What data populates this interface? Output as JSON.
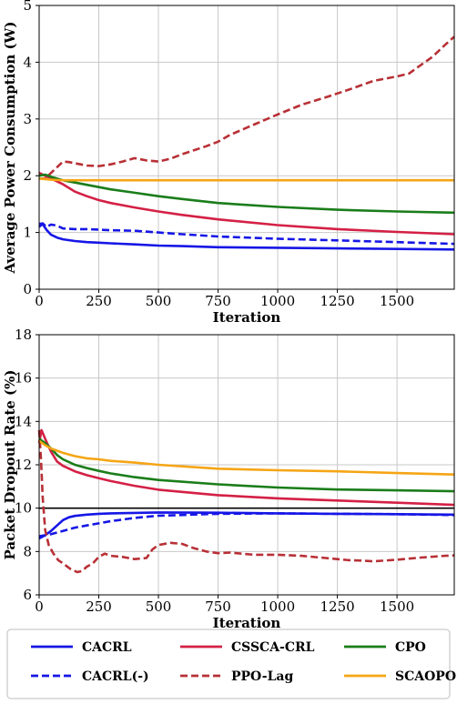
{
  "chart_data": [
    {
      "type": "line",
      "xlabel": "Iteration",
      "ylabel": "Average Power Consumption (W)",
      "xlim": [
        0,
        1740
      ],
      "ylim": [
        0,
        5
      ],
      "xticks": [
        0,
        250,
        500,
        750,
        1000,
        1250,
        1500
      ],
      "yticks": [
        0,
        1,
        2,
        3,
        4,
        5
      ],
      "grid": true,
      "series": [
        {
          "name": "CACRL",
          "color": "#1616e6",
          "dash": "solid",
          "x": [
            0,
            15,
            30,
            50,
            75,
            100,
            150,
            200,
            250,
            300,
            400,
            500,
            600,
            750,
            1000,
            1250,
            1500,
            1740
          ],
          "y": [
            1.1,
            1.15,
            1.05,
            0.96,
            0.91,
            0.88,
            0.85,
            0.83,
            0.82,
            0.81,
            0.79,
            0.77,
            0.76,
            0.74,
            0.73,
            0.72,
            0.71,
            0.7
          ]
        },
        {
          "name": "CACRL(-)",
          "color": "#1616e6",
          "dash": "dashed",
          "x": [
            0,
            15,
            30,
            50,
            75,
            100,
            150,
            200,
            250,
            300,
            400,
            500,
            600,
            750,
            1000,
            1250,
            1500,
            1740
          ],
          "y": [
            1.15,
            1.16,
            1.1,
            1.14,
            1.12,
            1.07,
            1.06,
            1.06,
            1.05,
            1.04,
            1.03,
            1.0,
            0.97,
            0.93,
            0.89,
            0.86,
            0.83,
            0.8
          ]
        },
        {
          "name": "CSSCA-CRL",
          "color": "#d42045",
          "dash": "solid",
          "x": [
            0,
            25,
            50,
            100,
            150,
            200,
            250,
            300,
            400,
            500,
            600,
            750,
            1000,
            1250,
            1500,
            1740
          ],
          "y": [
            2.05,
            2.0,
            1.95,
            1.85,
            1.72,
            1.64,
            1.57,
            1.52,
            1.44,
            1.37,
            1.31,
            1.23,
            1.13,
            1.06,
            1.01,
            0.97
          ]
        },
        {
          "name": "PPO-Lag",
          "color": "#b83036",
          "dash": "dashed",
          "x": [
            0,
            25,
            50,
            75,
            100,
            125,
            150,
            200,
            250,
            300,
            350,
            400,
            450,
            500,
            550,
            600,
            650,
            700,
            750,
            800,
            900,
            1000,
            1100,
            1200,
            1300,
            1400,
            1500,
            1550,
            1600,
            1650,
            1700,
            1740
          ],
          "y": [
            1.95,
            1.95,
            2.05,
            2.15,
            2.25,
            2.24,
            2.22,
            2.18,
            2.17,
            2.2,
            2.25,
            2.31,
            2.27,
            2.25,
            2.3,
            2.38,
            2.45,
            2.52,
            2.6,
            2.72,
            2.9,
            3.08,
            3.25,
            3.38,
            3.52,
            3.67,
            3.75,
            3.8,
            3.95,
            4.1,
            4.3,
            4.45
          ]
        },
        {
          "name": "CPO",
          "color": "#1a7d1a",
          "dash": "solid",
          "x": [
            0,
            25,
            50,
            100,
            150,
            200,
            250,
            300,
            400,
            500,
            600,
            750,
            1000,
            1250,
            1500,
            1740
          ],
          "y": [
            2.0,
            2.02,
            1.98,
            1.92,
            1.88,
            1.84,
            1.8,
            1.76,
            1.7,
            1.64,
            1.59,
            1.52,
            1.45,
            1.4,
            1.37,
            1.35
          ]
        },
        {
          "name": "SCAOPO",
          "color": "#f5a515",
          "dash": "solid",
          "x": [
            0,
            50,
            100,
            250,
            500,
            750,
            1000,
            1250,
            1500,
            1740
          ],
          "y": [
            1.95,
            1.93,
            1.92,
            1.92,
            1.92,
            1.92,
            1.92,
            1.92,
            1.92,
            1.92
          ]
        }
      ]
    },
    {
      "type": "line",
      "xlabel": "Iteration",
      "ylabel": "Packet Dropout Rate (%)",
      "xlim": [
        0,
        1740
      ],
      "ylim": [
        6,
        18
      ],
      "xticks": [
        0,
        250,
        500,
        750,
        1000,
        1250,
        1500
      ],
      "yticks": [
        6,
        8,
        10,
        12,
        14,
        16,
        18
      ],
      "grid": true,
      "hline": 10,
      "series": [
        {
          "name": "CACRL",
          "color": "#1616e6",
          "dash": "solid",
          "x": [
            0,
            25,
            50,
            75,
            100,
            125,
            150,
            200,
            250,
            300,
            400,
            500,
            750,
            1000,
            1250,
            1500,
            1740
          ],
          "y": [
            8.6,
            8.75,
            8.95,
            9.2,
            9.45,
            9.58,
            9.64,
            9.7,
            9.74,
            9.76,
            9.78,
            9.8,
            9.79,
            9.76,
            9.74,
            9.72,
            9.7
          ]
        },
        {
          "name": "CACRL(-)",
          "color": "#1616e6",
          "dash": "dashed",
          "x": [
            0,
            50,
            100,
            150,
            200,
            250,
            300,
            400,
            500,
            750,
            1000,
            1250,
            1500,
            1740
          ],
          "y": [
            8.7,
            8.8,
            8.95,
            9.1,
            9.2,
            9.3,
            9.4,
            9.55,
            9.65,
            9.74,
            9.76,
            9.74,
            9.72,
            9.68
          ]
        },
        {
          "name": "CSSCA-CRL",
          "color": "#d42045",
          "dash": "solid",
          "x": [
            0,
            10,
            25,
            50,
            75,
            100,
            150,
            200,
            250,
            300,
            400,
            500,
            750,
            1000,
            1250,
            1500,
            1740
          ],
          "y": [
            13.0,
            13.6,
            13.2,
            12.6,
            12.15,
            11.95,
            11.7,
            11.52,
            11.38,
            11.25,
            11.03,
            10.85,
            10.6,
            10.45,
            10.35,
            10.25,
            10.15
          ]
        },
        {
          "name": "PPO-Lag",
          "color": "#b83036",
          "dash": "dashed",
          "x": [
            0,
            8,
            15,
            25,
            40,
            60,
            80,
            100,
            130,
            160,
            180,
            200,
            225,
            250,
            275,
            300,
            350,
            400,
            450,
            475,
            500,
            550,
            600,
            650,
            700,
            750,
            800,
            900,
            1000,
            1100,
            1200,
            1300,
            1350,
            1400,
            1500,
            1600,
            1700,
            1740
          ],
          "y": [
            13.6,
            12.2,
            10.5,
            9.0,
            8.3,
            7.9,
            7.6,
            7.45,
            7.2,
            7.05,
            7.1,
            7.3,
            7.45,
            7.75,
            7.9,
            7.8,
            7.75,
            7.65,
            7.7,
            8.1,
            8.3,
            8.4,
            8.35,
            8.15,
            8.0,
            7.92,
            7.95,
            7.85,
            7.85,
            7.8,
            7.7,
            7.6,
            7.58,
            7.55,
            7.62,
            7.72,
            7.8,
            7.82
          ]
        },
        {
          "name": "CPO",
          "color": "#1a7d1a",
          "dash": "solid",
          "x": [
            0,
            25,
            50,
            75,
            100,
            150,
            200,
            250,
            300,
            400,
            500,
            750,
            1000,
            1250,
            1500,
            1740
          ],
          "y": [
            13.2,
            13.0,
            12.75,
            12.45,
            12.25,
            12.0,
            11.85,
            11.72,
            11.6,
            11.43,
            11.3,
            11.1,
            10.95,
            10.86,
            10.82,
            10.78
          ]
        },
        {
          "name": "SCAOPO",
          "color": "#f5a515",
          "dash": "solid",
          "x": [
            0,
            25,
            50,
            100,
            150,
            200,
            250,
            300,
            400,
            500,
            750,
            1000,
            1250,
            1500,
            1740
          ],
          "y": [
            13.1,
            12.9,
            12.75,
            12.55,
            12.4,
            12.3,
            12.25,
            12.18,
            12.1,
            12.0,
            11.82,
            11.75,
            11.7,
            11.62,
            11.55
          ]
        }
      ]
    }
  ],
  "legend": {
    "placement": "bottom",
    "entries": [
      {
        "label": "CACRL",
        "color": "#1616e6",
        "dash": "solid"
      },
      {
        "label": "CSSCA-CRL",
        "color": "#d42045",
        "dash": "solid"
      },
      {
        "label": "CPO",
        "color": "#1a7d1a",
        "dash": "solid"
      },
      {
        "label": "CACRL(-)",
        "color": "#1616e6",
        "dash": "dashed"
      },
      {
        "label": "PPO-Lag",
        "color": "#b83036",
        "dash": "dashed"
      },
      {
        "label": "SCAOPO",
        "color": "#f5a515",
        "dash": "solid"
      }
    ]
  }
}
